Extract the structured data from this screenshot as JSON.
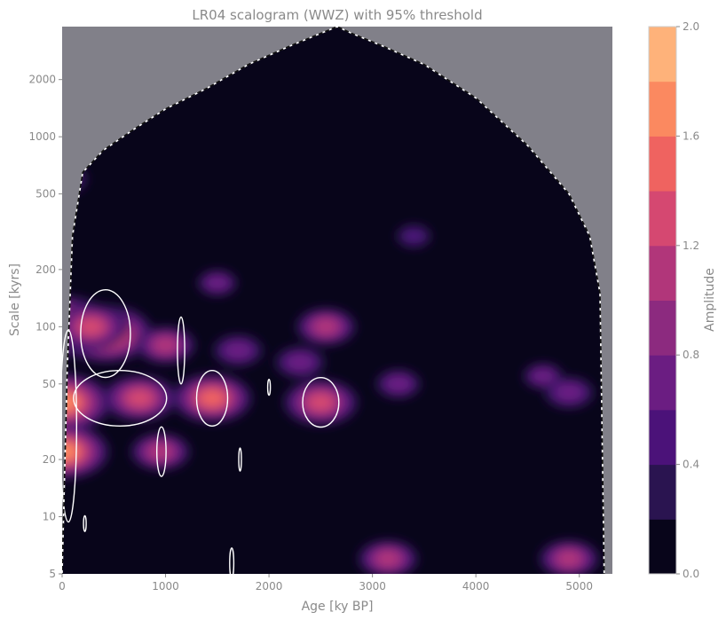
{
  "chart_data": {
    "type": "heatmap",
    "title": "LR04 scalogram (WWZ) with 95% threshold",
    "xlabel": "Age [ky BP]",
    "ylabel": "Scale [kyrs]",
    "xlim": [
      0,
      5320
    ],
    "ylim": [
      5,
      3800
    ],
    "yscale": "log",
    "x_ticks": [
      "0",
      "1000",
      "2000",
      "3000",
      "4000",
      "5000"
    ],
    "y_ticks": [
      "5",
      "10",
      "20",
      "50",
      "100",
      "200",
      "500",
      "1000",
      "2000"
    ],
    "colorbar": {
      "label": "Amplitude",
      "ticks": [
        "0.0",
        "0.4",
        "0.8",
        "1.2",
        "1.6",
        "2.0"
      ],
      "levels": [
        0.0,
        0.2,
        0.4,
        0.6,
        0.8,
        1.0,
        1.2,
        1.4,
        1.6,
        1.8,
        2.0
      ],
      "colors": [
        "#08051a",
        "#2a1450",
        "#4b1279",
        "#6b1d82",
        "#8c2a7f",
        "#b1367a",
        "#d54871",
        "#ef6360",
        "#fb8960",
        "#feb27a",
        "#fde5a6"
      ]
    },
    "cone_of_influence": {
      "x": [
        0,
        50,
        100,
        200,
        400,
        700,
        1000,
        1400,
        1800,
        2200,
        2500,
        2660,
        2800,
        3100,
        3500,
        4000,
        4500,
        4900,
        5100,
        5200,
        5240
      ],
      "y": [
        5,
        60,
        300,
        650,
        850,
        1100,
        1400,
        1800,
        2400,
        3000,
        3500,
        3800,
        3500,
        3000,
        2400,
        1600,
        900,
        500,
        300,
        150,
        5
      ]
    },
    "blobs": [
      {
        "x": 30,
        "y": 100,
        "amp": 1.7
      },
      {
        "x": 20,
        "y": 40,
        "amp": 1.6
      },
      {
        "x": 20,
        "y": 22,
        "amp": 1.5
      },
      {
        "x": 0,
        "y": 600,
        "amp": 0.7
      },
      {
        "x": 420,
        "y": 92,
        "amp": 1.6
      },
      {
        "x": 280,
        "y": 100,
        "amp": 1.2
      },
      {
        "x": 750,
        "y": 42,
        "amp": 1.2
      },
      {
        "x": 1450,
        "y": 42,
        "amp": 1.3
      },
      {
        "x": 2500,
        "y": 40,
        "amp": 1.2
      },
      {
        "x": 2550,
        "y": 100,
        "amp": 0.9
      },
      {
        "x": 1000,
        "y": 80,
        "amp": 0.9
      },
      {
        "x": 950,
        "y": 22,
        "amp": 0.9
      },
      {
        "x": 1700,
        "y": 75,
        "amp": 0.7
      },
      {
        "x": 2300,
        "y": 65,
        "amp": 0.7
      },
      {
        "x": 3250,
        "y": 50,
        "amp": 0.6
      },
      {
        "x": 4650,
        "y": 55,
        "amp": 0.5
      },
      {
        "x": 4900,
        "y": 45,
        "amp": 0.7
      },
      {
        "x": 3150,
        "y": 6,
        "amp": 0.9
      },
      {
        "x": 4900,
        "y": 6,
        "amp": 0.9
      },
      {
        "x": 1500,
        "y": 170,
        "amp": 0.5
      },
      {
        "x": 3400,
        "y": 300,
        "amp": 0.4
      }
    ],
    "significance_contours": [
      {
        "x": 420,
        "y": 92,
        "w": 480,
        "h": 1.7
      },
      {
        "x": 560,
        "y": 42,
        "w": 900,
        "h": 1.4
      },
      {
        "x": 60,
        "y": 30,
        "w": 160,
        "h": 3.2
      },
      {
        "x": 1450,
        "y": 42,
        "w": 300,
        "h": 1.4
      },
      {
        "x": 2500,
        "y": 40,
        "w": 350,
        "h": 1.35
      },
      {
        "x": 960,
        "y": 22,
        "w": 90,
        "h": 1.35
      },
      {
        "x": 1150,
        "y": 75,
        "w": 70,
        "h": 1.5
      },
      {
        "x": 1720,
        "y": 20,
        "w": 25,
        "h": 1.15
      },
      {
        "x": 2000,
        "y": 48,
        "w": 25,
        "h": 1.1
      },
      {
        "x": 220,
        "y": 9.2,
        "w": 25,
        "h": 1.1
      },
      {
        "x": 1640,
        "y": 5.7,
        "w": 40,
        "h": 1.2
      }
    ]
  }
}
